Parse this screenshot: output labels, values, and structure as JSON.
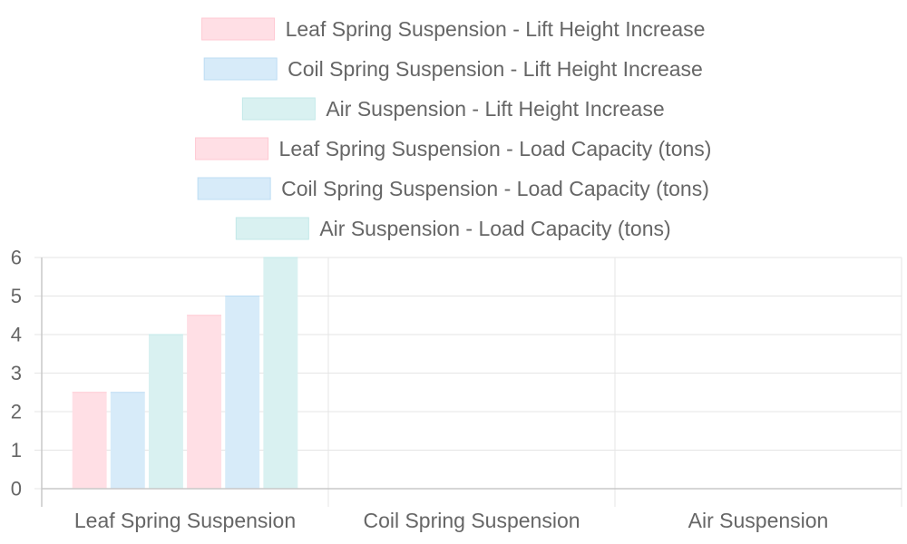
{
  "chart_data": {
    "type": "bar",
    "categories": [
      "Leaf Spring Suspension",
      "Coil Spring Suspension",
      "Air Suspension"
    ],
    "series": [
      {
        "name": "Leaf Spring Suspension - Lift Height Increase",
        "values": [
          2.5,
          null,
          null
        ],
        "color": "#ffdfe5",
        "border": "#ffc9d3"
      },
      {
        "name": "Coil Spring Suspension - Lift Height Increase",
        "values": [
          2.5,
          null,
          null
        ],
        "color": "#d7ebf9",
        "border": "#bcdcf3"
      },
      {
        "name": "Air Suspension - Lift Height Increase",
        "values": [
          4,
          null,
          null
        ],
        "color": "#d9f1f1",
        "border": "#c2e8e8"
      },
      {
        "name": "Leaf Spring Suspension - Load Capacity (tons)",
        "values": [
          4.5,
          null,
          null
        ],
        "color": "#ffdfe5",
        "border": "#ffc9d3"
      },
      {
        "name": "Coil Spring Suspension - Load Capacity (tons)",
        "values": [
          5,
          null,
          null
        ],
        "color": "#d7ebf9",
        "border": "#bcdcf3"
      },
      {
        "name": "Air Suspension - Load Capacity (tons)",
        "values": [
          6,
          null,
          null
        ],
        "color": "#d9f1f1",
        "border": "#c2e8e8"
      }
    ],
    "ylim": [
      0,
      6
    ],
    "yticks": [
      "0",
      "1",
      "2",
      "3",
      "4",
      "5",
      "6"
    ],
    "grid": true,
    "legend_position": "top"
  }
}
